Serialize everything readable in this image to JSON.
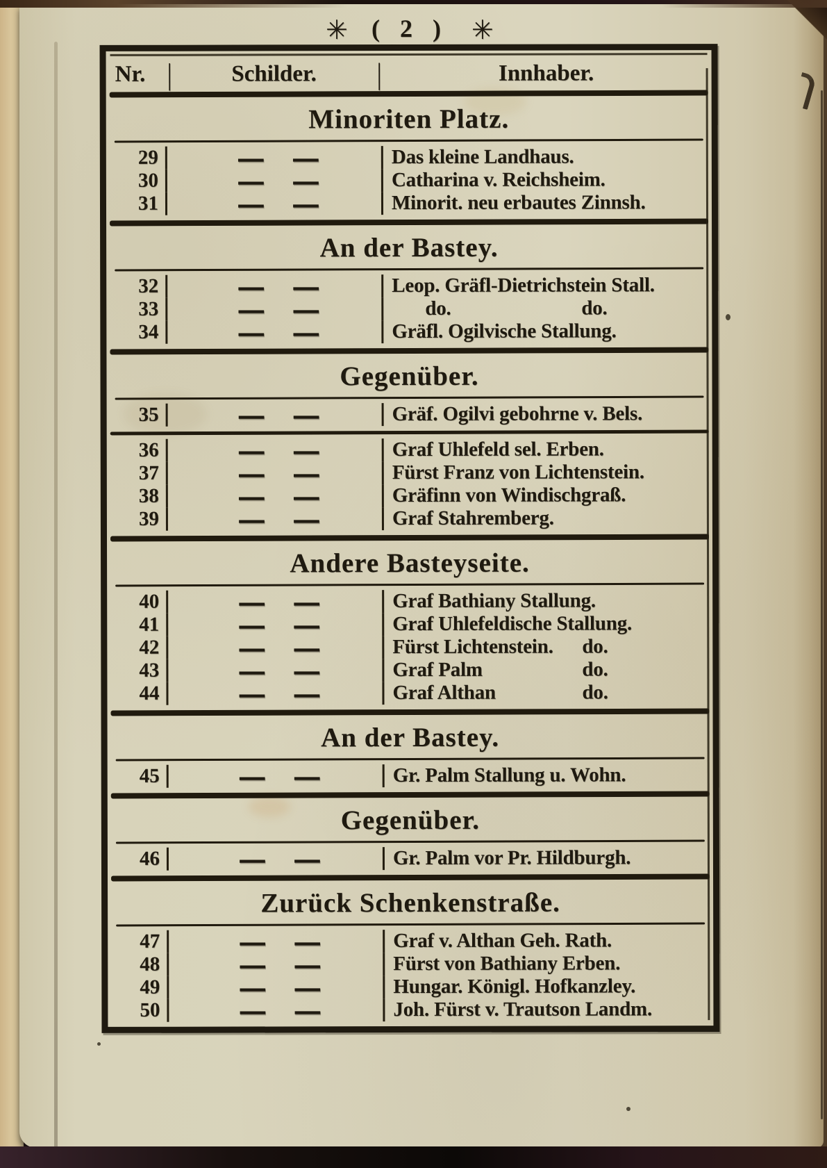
{
  "page": {
    "ornament_left": "✳",
    "ornament_right": "✳",
    "page_number": "( 2 )"
  },
  "table": {
    "header": {
      "nr": "Nr.",
      "separator": "|",
      "schilder": "Schilder.",
      "innhaber": "Innhaber."
    },
    "dash": "—",
    "blocks": [
      {
        "type": "title",
        "text": "Minoriten Platz."
      },
      {
        "type": "rows",
        "rows": [
          {
            "nr": "29",
            "owner": "Das kleine Landhaus."
          },
          {
            "nr": "30",
            "owner": "Catharina v. Reichsheim."
          },
          {
            "nr": "31",
            "owner": "Minorit. neu erbautes Zinnsh."
          }
        ]
      },
      {
        "type": "title",
        "text": "An der Bastey."
      },
      {
        "type": "rows",
        "rows": [
          {
            "nr": "32",
            "owner": "Leop. Gräfl-Dietrichstein Stall."
          },
          {
            "nr": "33",
            "owner": "do.",
            "suffix": "do."
          },
          {
            "nr": "34",
            "owner": "Gräfl. Ogilvische Stallung."
          }
        ]
      },
      {
        "type": "title",
        "text": "Gegenüber."
      },
      {
        "type": "rows",
        "rows": [
          {
            "nr": "35",
            "owner": "Gräf. Ogilvi gebohrne v. Bels."
          }
        ]
      },
      {
        "type": "rows",
        "rows": [
          {
            "nr": "36",
            "owner": "Graf Uhlefeld sel. Erben."
          },
          {
            "nr": "37",
            "owner": "Fürst Franz von Lichtenstein."
          },
          {
            "nr": "38",
            "owner": "Gräfinn von Windischgraß."
          },
          {
            "nr": "39",
            "owner": "Graf Stahremberg."
          }
        ]
      },
      {
        "type": "title",
        "text": "Andere Basteyseite."
      },
      {
        "type": "rows",
        "rows": [
          {
            "nr": "40",
            "owner": "Graf Bathiany Stallung."
          },
          {
            "nr": "41",
            "owner": "Graf Uhlefeldische Stallung."
          },
          {
            "nr": "42",
            "owner": "Fürst Lichtenstein.",
            "suffix": "do."
          },
          {
            "nr": "43",
            "owner": "Graf Palm",
            "suffix": "do."
          },
          {
            "nr": "44",
            "owner": "Graf Althan",
            "suffix": "do."
          }
        ]
      },
      {
        "type": "title",
        "text": "An der Bastey."
      },
      {
        "type": "rows",
        "rows": [
          {
            "nr": "45",
            "owner": "Gr. Palm Stallung u. Wohn."
          }
        ]
      },
      {
        "type": "title",
        "text": "Gegenüber."
      },
      {
        "type": "rows",
        "rows": [
          {
            "nr": "46",
            "owner": "Gr. Palm vor Pr. Hildburgh."
          }
        ]
      },
      {
        "type": "title",
        "text": "Zurück Schenkenstraße."
      },
      {
        "type": "rows",
        "rows": [
          {
            "nr": "47",
            "owner": "Graf v. Althan Geh. Rath."
          },
          {
            "nr": "48",
            "owner": "Fürst von Bathiany Erben."
          },
          {
            "nr": "49",
            "owner": "Hungar. Königl. Hofkanzley."
          },
          {
            "nr": "50",
            "owner": "Joh. Fürst v. Trautson Landm."
          }
        ]
      }
    ]
  },
  "colors": {
    "paper": "#d7d2b9",
    "ink": "#1f1a10",
    "cover": "#140d0a",
    "edge_tan": "#d5c196"
  }
}
